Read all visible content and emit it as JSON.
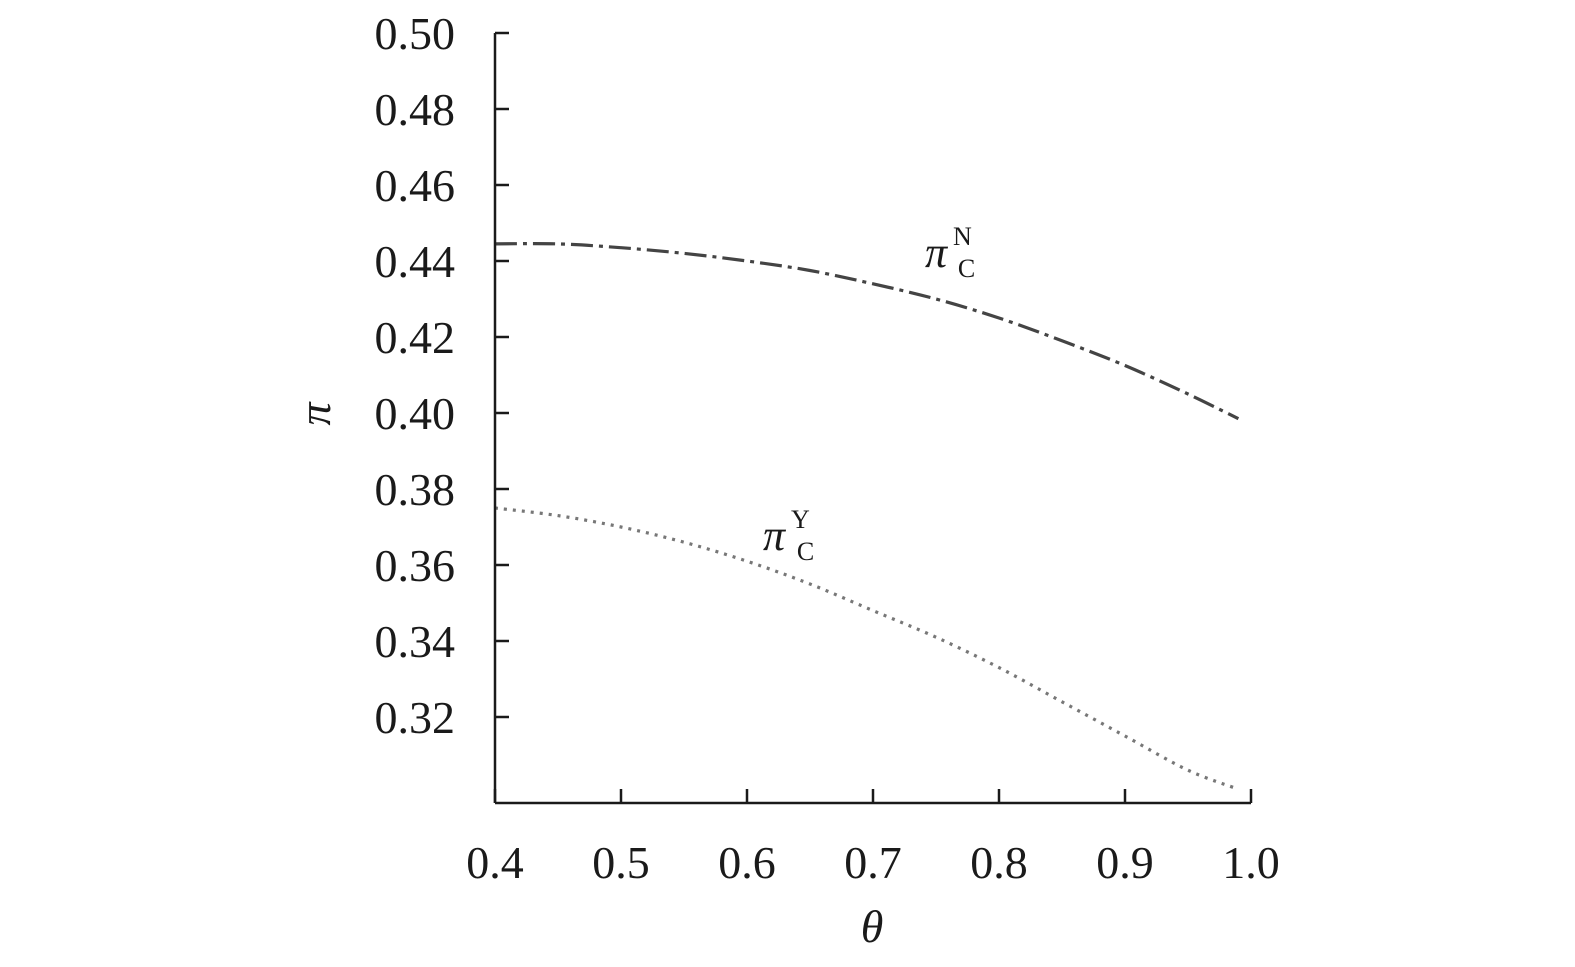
{
  "chart_data": {
    "type": "line",
    "title": "",
    "xlabel": "θ",
    "ylabel": "π",
    "xlim": [
      0.4,
      1.0
    ],
    "ylim": [
      0.3,
      0.5
    ],
    "x_ticks": [
      0.4,
      0.5,
      0.6,
      0.7,
      0.8,
      0.9,
      1.0
    ],
    "x_tick_labels": [
      "0.4",
      "0.5",
      "0.6",
      "0.7",
      "0.8",
      "0.9",
      "1.0"
    ],
    "y_ticks": [
      0.5,
      0.48,
      0.46,
      0.44,
      0.42,
      0.4,
      0.38,
      0.36,
      0.34,
      0.32
    ],
    "y_tick_labels": [
      "0.50",
      "0.48",
      "0.46",
      "0.44",
      "0.42",
      "0.40",
      "0.38",
      "0.36",
      "0.34",
      "0.32"
    ],
    "grid": false,
    "legend": "none",
    "series": [
      {
        "label": {
          "symbol": "π",
          "sup": "N",
          "sub": "C"
        },
        "style": "dash-dot",
        "color": "#444444",
        "x": [
          0.4,
          0.45,
          0.5,
          0.55,
          0.6,
          0.65,
          0.7,
          0.75,
          0.8,
          0.85,
          0.9,
          0.95,
          0.99
        ],
        "y": [
          0.4445,
          0.4445,
          0.4435,
          0.442,
          0.44,
          0.4375,
          0.434,
          0.43,
          0.425,
          0.419,
          0.4125,
          0.405,
          0.3985
        ]
      },
      {
        "label": {
          "symbol": "π",
          "sup": "Y",
          "sub": "C"
        },
        "style": "dotted",
        "color": "#777777",
        "x": [
          0.4,
          0.45,
          0.5,
          0.55,
          0.6,
          0.65,
          0.7,
          0.75,
          0.8,
          0.85,
          0.9,
          0.95,
          0.99
        ],
        "y": [
          0.375,
          0.373,
          0.37,
          0.366,
          0.361,
          0.355,
          0.348,
          0.341,
          0.333,
          0.324,
          0.315,
          0.306,
          0.301
        ]
      }
    ]
  }
}
